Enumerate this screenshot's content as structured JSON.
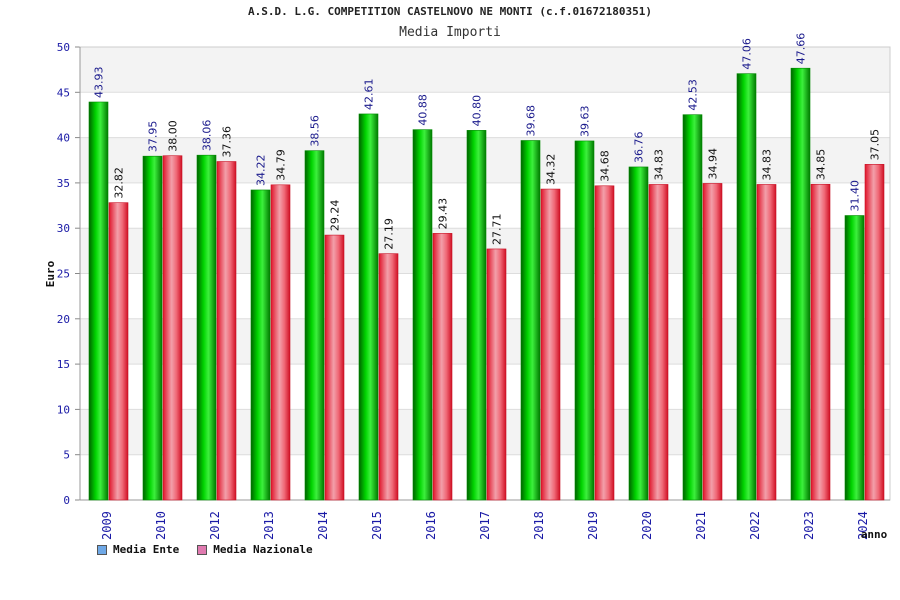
{
  "chart_data": {
    "type": "bar",
    "title": "A.S.D. L.G. COMPETITION CASTELNOVO NE MONTI (c.f.01672180351)",
    "subtitle": "Media Importi",
    "xlabel": "anno",
    "ylabel": "Euro",
    "ylim": [
      0,
      50
    ],
    "yticks": [
      0,
      5,
      10,
      15,
      20,
      25,
      30,
      35,
      40,
      45,
      50
    ],
    "grid": true,
    "legend_position": "bottom-left",
    "categories": [
      "2009",
      "2010",
      "2012",
      "2013",
      "2014",
      "2015",
      "2016",
      "2017",
      "2018",
      "2019",
      "2020",
      "2021",
      "2022",
      "2023",
      "2024"
    ],
    "series": [
      {
        "name": "Media Ente",
        "color": "#00c800",
        "legend_color": "#6fa8e6",
        "values": [
          43.93,
          37.95,
          38.06,
          34.22,
          38.56,
          42.61,
          40.88,
          40.8,
          39.68,
          39.63,
          36.76,
          42.53,
          47.06,
          47.66,
          31.4
        ],
        "value_labels": [
          "43.93",
          "37.95",
          "38.06",
          "34.22",
          "38.56",
          "42.61",
          "40.88",
          "40.80",
          "39.68",
          "39.63",
          "36.76",
          "42.53",
          "47.06",
          "47.66",
          "31.40"
        ]
      },
      {
        "name": "Media Nazionale",
        "color": "#e8263a",
        "legend_color": "#e07ab0",
        "values": [
          32.82,
          38.0,
          37.36,
          34.79,
          29.24,
          27.19,
          29.43,
          27.71,
          34.32,
          34.68,
          34.83,
          34.94,
          34.83,
          34.85,
          37.05
        ],
        "value_labels": [
          "32.82",
          "38.00",
          "37.36",
          "34.79",
          "29.24",
          "27.19",
          "29.43",
          "27.71",
          "34.32",
          "34.68",
          "34.83",
          "34.94",
          "34.83",
          "34.85",
          "37.05"
        ]
      }
    ]
  }
}
